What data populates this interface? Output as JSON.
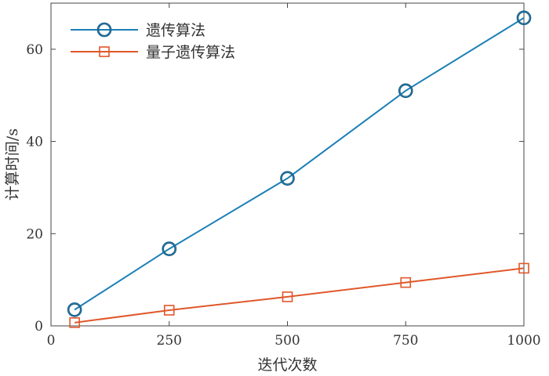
{
  "chart_data": {
    "type": "line",
    "title": "",
    "xlabel": "迭代次数",
    "ylabel": "计算时间/s",
    "xlim": [
      0,
      1000
    ],
    "ylim": [
      0,
      70
    ],
    "xticks": [
      0,
      250,
      500,
      750,
      1000
    ],
    "yticks": [
      0,
      20,
      40,
      60
    ],
    "x": [
      50,
      250,
      500,
      750,
      1000
    ],
    "series": [
      {
        "name": "遗传算法",
        "values": [
          3.5,
          16.7,
          32.0,
          51.0,
          66.8
        ],
        "color": "#1a7fb5",
        "marker": "circle"
      },
      {
        "name": "量子遗传算法",
        "values": [
          0.7,
          3.4,
          6.3,
          9.4,
          12.5
        ],
        "color": "#e0572a",
        "marker": "square"
      }
    ],
    "legend": "top-left",
    "grid": false
  }
}
